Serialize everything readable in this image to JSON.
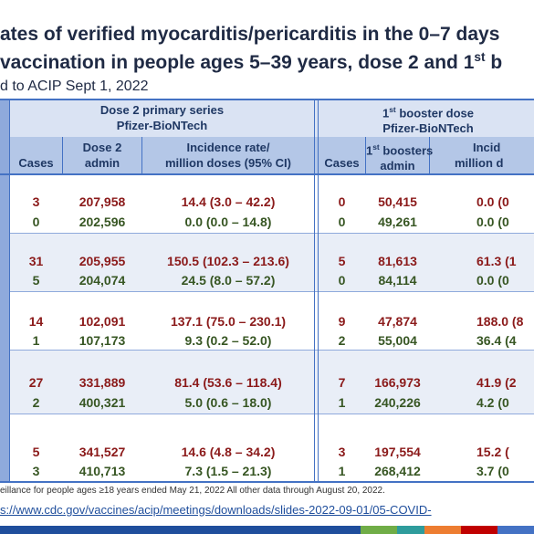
{
  "header": {
    "title_line1": "ates of verified myocarditis/pericarditis in the 0–7 days",
    "title_line2": "vaccination in people ages 5–39 years, dose 2 and 1",
    "title_line2_sup": "st",
    "title_line2_end": " b",
    "subtitle": "d to ACIP Sept 1, 2022"
  },
  "table": {
    "groups": [
      {
        "title": "Dose 2 primary series",
        "subtitle": "Pfizer-BioNTech"
      },
      {
        "title_pre": "1",
        "title_sup": "st",
        "title_post": " booster dose",
        "subtitle": "Pfizer-BioNTech"
      }
    ],
    "columns": {
      "cases_1": "Cases",
      "dose2_admin": [
        "Dose 2",
        "admin"
      ],
      "incidence_1": [
        "Incidence rate/",
        "million doses (95% CI)"
      ],
      "cases_2": "Cases",
      "booster_admin_pre": "1",
      "booster_admin_sup": "st",
      "booster_admin_post": " boosters",
      "booster_admin_line2": "admin",
      "incidence_2": [
        "Incid",
        "million d"
      ]
    },
    "rows": [
      [
        "3",
        "207,958",
        "14.4 (3.0 – 42.2)",
        "0",
        "50,415",
        "0.0 (0"
      ],
      [
        "0",
        "202,596",
        "0.0 (0.0 – 14.8)",
        "0",
        "49,261",
        "0.0 (0"
      ],
      [
        "31",
        "205,955",
        "150.5 (102.3 – 213.6)",
        "5",
        "81,613",
        "61.3 (1"
      ],
      [
        "5",
        "204,074",
        "24.5 (8.0 – 57.2)",
        "0",
        "84,114",
        "0.0 (0"
      ],
      [
        "14",
        "102,091",
        "137.1 (75.0 – 230.1)",
        "9",
        "47,874",
        "188.0 (8"
      ],
      [
        "1",
        "107,173",
        "9.3 (0.2 – 52.0)",
        "2",
        "55,004",
        "36.4 (4"
      ],
      [
        "27",
        "331,889",
        "81.4 (53.6 – 118.4)",
        "7",
        "166,973",
        "41.9 (2"
      ],
      [
        "2",
        "400,321",
        "5.0 (0.6 – 18.0)",
        "1",
        "240,226",
        "4.2 (0"
      ],
      [
        "5",
        "341,527",
        "14.6 (4.8 – 34.2)",
        "3",
        "197,554",
        "15.2 ("
      ],
      [
        "3",
        "410,713",
        "7.3 (1.5 – 21.3)",
        "1",
        "268,412",
        "3.7 (0"
      ]
    ]
  },
  "footnote": "eillance for people ages ≥18 years ended May 21, 2022 All other data through August 20, 2022.",
  "url": "s://www.cdc.gov/vaccines/acip/meetings/downloads/slides-2022-09-01/05-COVID-"
}
